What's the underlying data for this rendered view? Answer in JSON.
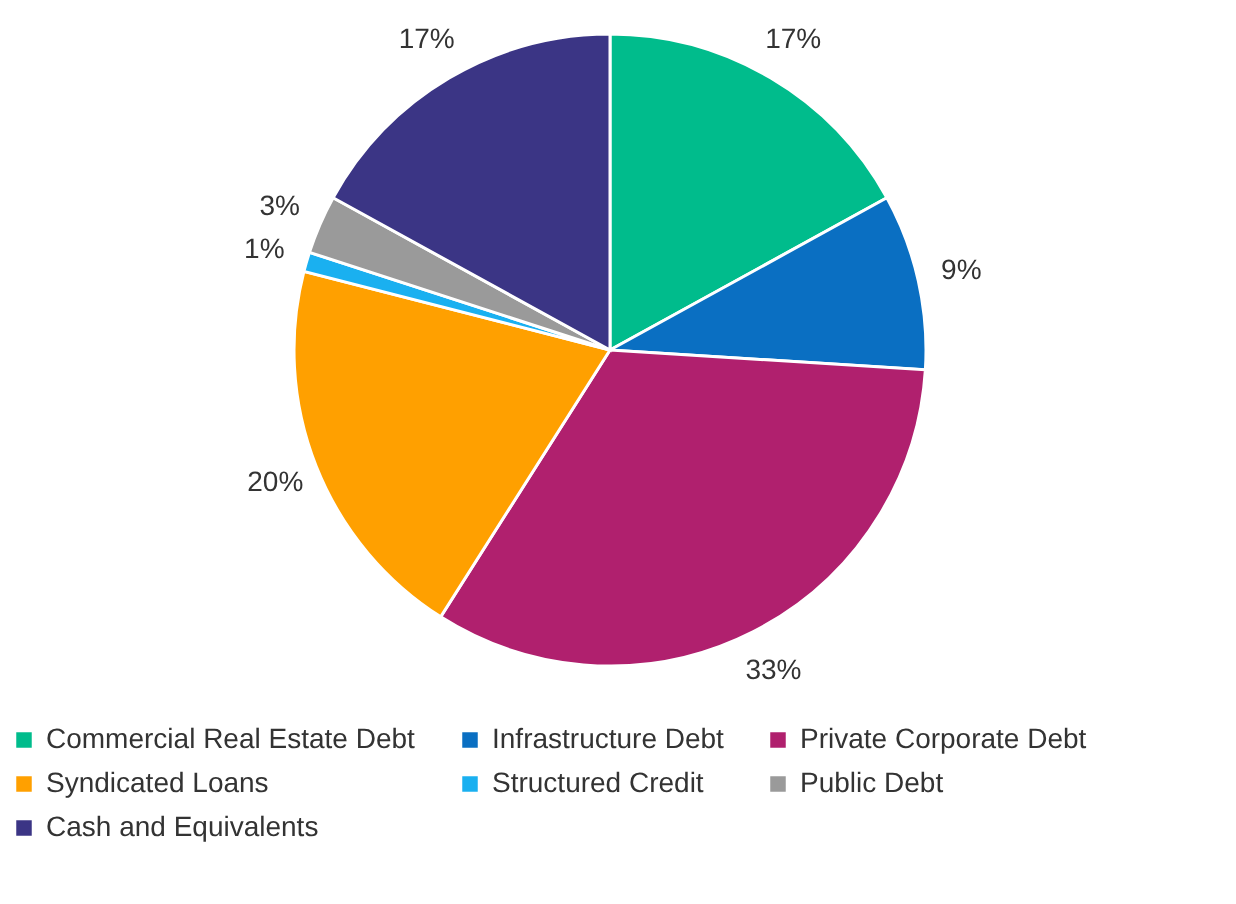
{
  "chart_data": {
    "type": "pie",
    "categories": [
      "Commercial Real Estate Debt",
      "Infrastructure Debt",
      "Private Corporate Debt",
      "Syndicated Loans",
      "Structured Credit",
      "Public Debt",
      "Cash and Equivalents"
    ],
    "values": [
      17,
      9,
      33,
      20,
      1,
      3,
      17
    ],
    "colors": [
      "#00bc8c",
      "#0a6fc2",
      "#b0206e",
      "#ffa000",
      "#1ab0f0",
      "#9a9a9a",
      "#3b3585"
    ],
    "value_labels": [
      "17%",
      "9%",
      "33%",
      "20%",
      "1%",
      "3%",
      "17%"
    ],
    "legend": "bottom"
  }
}
